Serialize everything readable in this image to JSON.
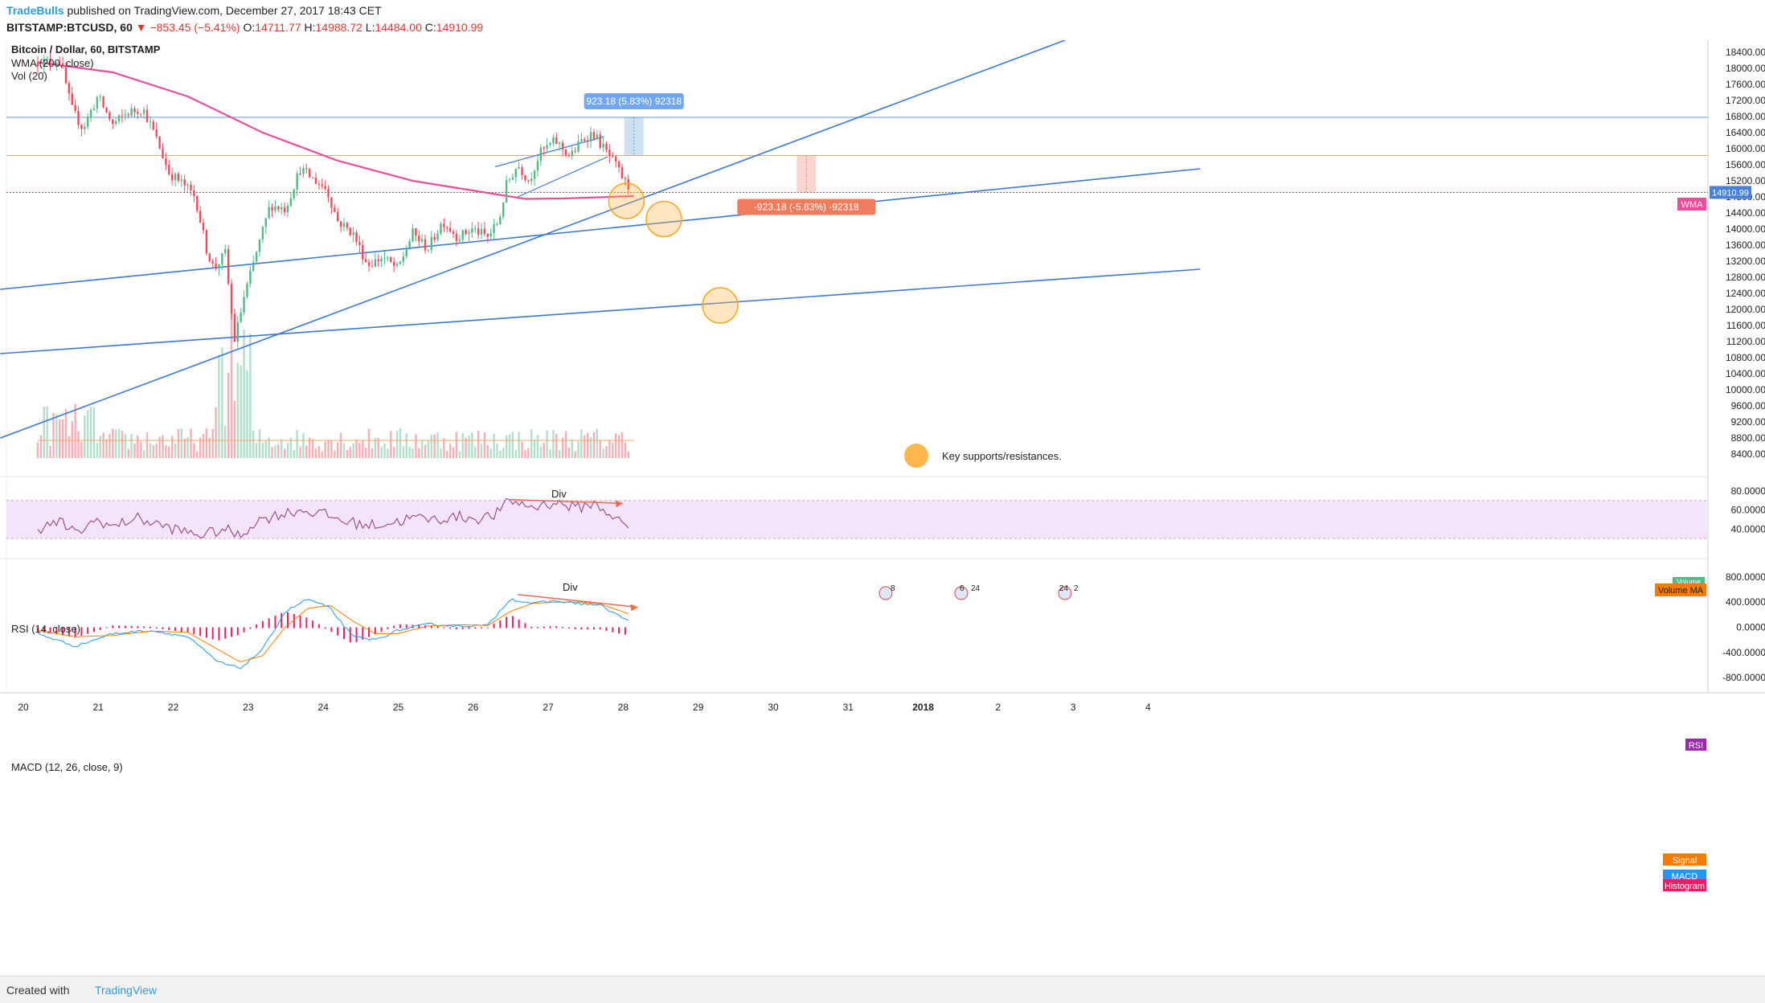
{
  "header": {
    "author": "TradeBulls",
    "published": "published on TradingView.com, December 27, 2017 18:43 CET",
    "symbol": "BITSTAMP:BTCUSD, 60",
    "change": "▼ −853.45 (−5.41%)",
    "open_label": "O:",
    "open": "14711.77",
    "high_label": "H:",
    "high": "14988.72",
    "low_label": "L:",
    "low": "14484.00",
    "close_label": "C:",
    "close": "14910.99"
  },
  "footer": {
    "created_with": "Created with",
    "brand": "TradingView"
  },
  "chart_data": {
    "type": "candlestick",
    "title": "Bitcoin / Dollar, 60, BITSTAMP",
    "indicators": [
      "WMA (200, close)",
      "Vol (20)"
    ],
    "x_ticks": [
      "20",
      "21",
      "22",
      "23",
      "24",
      "25",
      "26",
      "27",
      "28",
      "29",
      "30",
      "31",
      "2018",
      "2",
      "3",
      "4"
    ],
    "y_ticks": [
      "18400.00",
      "18000.00",
      "17600.00",
      "17200.00",
      "16800.00",
      "16400.00",
      "16000.00",
      "15600.00",
      "15200.00",
      "14800.00",
      "14400.00",
      "14000.00",
      "13600.00",
      "13200.00",
      "12800.00",
      "12400.00",
      "12000.00",
      "11600.00",
      "11200.00",
      "10800.00",
      "10400.00",
      "10000.00",
      "9600.00",
      "9200.00",
      "8800.00",
      "8400.00"
    ],
    "ylim": [
      8200,
      18700
    ],
    "price_points": [
      {
        "t": 0,
        "p": 18150
      },
      {
        "t": 0.3,
        "p": 18200
      },
      {
        "t": 0.45,
        "p": 17000
      },
      {
        "t": 0.6,
        "p": 16500
      },
      {
        "t": 0.8,
        "p": 17300
      },
      {
        "t": 1.0,
        "p": 16600
      },
      {
        "t": 1.2,
        "p": 16900
      },
      {
        "t": 1.4,
        "p": 17000
      },
      {
        "t": 1.55,
        "p": 16400
      },
      {
        "t": 1.75,
        "p": 15400
      },
      {
        "t": 1.95,
        "p": 15100
      },
      {
        "t": 2.1,
        "p": 14800
      },
      {
        "t": 2.25,
        "p": 13500
      },
      {
        "t": 2.35,
        "p": 13000
      },
      {
        "t": 2.5,
        "p": 13400
      },
      {
        "t": 2.62,
        "p": 11200
      },
      {
        "t": 2.75,
        "p": 12300
      },
      {
        "t": 2.9,
        "p": 13300
      },
      {
        "t": 3.1,
        "p": 14600
      },
      {
        "t": 3.3,
        "p": 14500
      },
      {
        "t": 3.5,
        "p": 15500
      },
      {
        "t": 3.7,
        "p": 15200
      },
      {
        "t": 3.85,
        "p": 15000
      },
      {
        "t": 4.0,
        "p": 14200
      },
      {
        "t": 4.2,
        "p": 13900
      },
      {
        "t": 4.4,
        "p": 13100
      },
      {
        "t": 4.6,
        "p": 13300
      },
      {
        "t": 4.8,
        "p": 13000
      },
      {
        "t": 5.0,
        "p": 13900
      },
      {
        "t": 5.2,
        "p": 13500
      },
      {
        "t": 5.4,
        "p": 14200
      },
      {
        "t": 5.6,
        "p": 13800
      },
      {
        "t": 5.8,
        "p": 14000
      },
      {
        "t": 6.0,
        "p": 13800
      },
      {
        "t": 6.15,
        "p": 14200
      },
      {
        "t": 6.25,
        "p": 15100
      },
      {
        "t": 6.4,
        "p": 15600
      },
      {
        "t": 6.55,
        "p": 15200
      },
      {
        "t": 6.7,
        "p": 15900
      },
      {
        "t": 6.9,
        "p": 16200
      },
      {
        "t": 7.1,
        "p": 15800
      },
      {
        "t": 7.25,
        "p": 16200
      },
      {
        "t": 7.4,
        "p": 16400
      },
      {
        "t": 7.55,
        "p": 16000
      },
      {
        "t": 7.7,
        "p": 15600
      },
      {
        "t": 7.85,
        "p": 15100
      },
      {
        "t": 7.95,
        "p": 14900
      }
    ],
    "wma_points": [
      {
        "t": 0,
        "p": 18150
      },
      {
        "t": 1,
        "p": 17900
      },
      {
        "t": 2,
        "p": 17300
      },
      {
        "t": 3,
        "p": 16400
      },
      {
        "t": 4,
        "p": 15700
      },
      {
        "t": 5,
        "p": 15200
      },
      {
        "t": 6,
        "p": 14900
      },
      {
        "t": 6.5,
        "p": 14750
      },
      {
        "t": 7,
        "p": 14760
      },
      {
        "t": 7.95,
        "p": 14820
      }
    ],
    "trendlines": [
      {
        "from": {
          "t": -0.5,
          "p": 8800
        },
        "to": {
          "t": 13.7,
          "p": 18700
        }
      },
      {
        "from": {
          "t": -0.5,
          "p": 12500
        },
        "to": {
          "t": 15.5,
          "p": 15500
        }
      },
      {
        "from": {
          "t": -0.5,
          "p": 10900
        },
        "to": {
          "t": 15.5,
          "p": 13000
        }
      }
    ],
    "channel_lines": [
      {
        "from": {
          "t": 6.1,
          "p": 15550
        },
        "to": {
          "t": 7.55,
          "p": 16300
        }
      },
      {
        "from": {
          "t": 6.4,
          "p": 14800
        },
        "to": {
          "t": 7.6,
          "p": 15800
        }
      }
    ],
    "horizontal_levels": [
      {
        "p": 16780,
        "color": "#5b9bd5"
      },
      {
        "p": 15830,
        "color": "#f5a76a"
      },
      {
        "p": 14911,
        "color": "#9c5050",
        "dotted": true
      }
    ],
    "measure_up": {
      "label": "923.18 (5.83%) 92318",
      "t": 7.95,
      "from": 15830,
      "to": 16780
    },
    "measure_down": {
      "label": "-923.18 (-5.83%) -92318",
      "t": 10.25,
      "from": 15830,
      "to": 14911
    },
    "key_circles": [
      {
        "t": 7.85,
        "p": 14700
      },
      {
        "t": 8.35,
        "p": 14250
      },
      {
        "t": 9.1,
        "p": 12100
      }
    ],
    "legend_note": "Key supports/resistances.",
    "last_price_label": "14910.99",
    "wma_tag": "WMA",
    "volume_tags": [
      "Volume",
      "Volume MA"
    ],
    "event_markers": [
      "8",
      "6",
      "24",
      "24",
      "2"
    ],
    "rsi": {
      "title": "RSI (14, close)",
      "ylim": [
        20,
        85
      ],
      "y_ticks": [
        "80.0000",
        "60.0000",
        "40.0000"
      ],
      "band": [
        30,
        70
      ],
      "points": [
        {
          "t": 0,
          "p": 40
        },
        {
          "t": 0.3,
          "p": 48
        },
        {
          "t": 0.5,
          "p": 35
        },
        {
          "t": 0.8,
          "p": 50
        },
        {
          "t": 1.0,
          "p": 42
        },
        {
          "t": 1.3,
          "p": 52
        },
        {
          "t": 1.6,
          "p": 45
        },
        {
          "t": 1.9,
          "p": 38
        },
        {
          "t": 2.2,
          "p": 34
        },
        {
          "t": 2.5,
          "p": 40
        },
        {
          "t": 2.7,
          "p": 32
        },
        {
          "t": 2.9,
          "p": 48
        },
        {
          "t": 3.2,
          "p": 55
        },
        {
          "t": 3.5,
          "p": 60
        },
        {
          "t": 3.8,
          "p": 56
        },
        {
          "t": 4.1,
          "p": 48
        },
        {
          "t": 4.4,
          "p": 44
        },
        {
          "t": 4.7,
          "p": 46
        },
        {
          "t": 5.0,
          "p": 52
        },
        {
          "t": 5.3,
          "p": 50
        },
        {
          "t": 5.6,
          "p": 53
        },
        {
          "t": 5.9,
          "p": 51
        },
        {
          "t": 6.1,
          "p": 55
        },
        {
          "t": 6.3,
          "p": 70
        },
        {
          "t": 6.6,
          "p": 63
        },
        {
          "t": 6.9,
          "p": 68
        },
        {
          "t": 7.2,
          "p": 62
        },
        {
          "t": 7.4,
          "p": 67
        },
        {
          "t": 7.6,
          "p": 58
        },
        {
          "t": 7.8,
          "p": 45
        },
        {
          "t": 7.95,
          "p": 40
        }
      ],
      "div_label": "Div",
      "tag": "RSI"
    },
    "macd": {
      "title": "MACD (12, 26, close, 9)",
      "ylim": [
        -950,
        900
      ],
      "y_ticks": [
        "800.0000",
        "400.0000",
        "0.0000",
        "-400.0000",
        "-800.0000"
      ],
      "macd_points": [
        {
          "t": 0,
          "p": -100
        },
        {
          "t": 0.5,
          "p": -300
        },
        {
          "t": 1.0,
          "p": -100
        },
        {
          "t": 1.5,
          "p": -50
        },
        {
          "t": 2.0,
          "p": -150
        },
        {
          "t": 2.4,
          "p": -550
        },
        {
          "t": 2.7,
          "p": -650
        },
        {
          "t": 3.0,
          "p": -350
        },
        {
          "t": 3.3,
          "p": 250
        },
        {
          "t": 3.6,
          "p": 450
        },
        {
          "t": 3.9,
          "p": 300
        },
        {
          "t": 4.2,
          "p": -150
        },
        {
          "t": 4.5,
          "p": -200
        },
        {
          "t": 4.8,
          "p": -50
        },
        {
          "t": 5.2,
          "p": 50
        },
        {
          "t": 5.6,
          "p": 20
        },
        {
          "t": 6.0,
          "p": 30
        },
        {
          "t": 6.3,
          "p": 450
        },
        {
          "t": 6.6,
          "p": 380
        },
        {
          "t": 6.9,
          "p": 420
        },
        {
          "t": 7.2,
          "p": 380
        },
        {
          "t": 7.5,
          "p": 350
        },
        {
          "t": 7.8,
          "p": 150
        },
        {
          "t": 7.95,
          "p": 50
        }
      ],
      "signal_points": [
        {
          "t": 0,
          "p": -50
        },
        {
          "t": 0.5,
          "p": -150
        },
        {
          "t": 1.0,
          "p": -130
        },
        {
          "t": 1.5,
          "p": -60
        },
        {
          "t": 2.0,
          "p": -80
        },
        {
          "t": 2.4,
          "p": -350
        },
        {
          "t": 2.7,
          "p": -550
        },
        {
          "t": 3.0,
          "p": -450
        },
        {
          "t": 3.3,
          "p": 0
        },
        {
          "t": 3.6,
          "p": 300
        },
        {
          "t": 3.9,
          "p": 350
        },
        {
          "t": 4.2,
          "p": 100
        },
        {
          "t": 4.5,
          "p": -100
        },
        {
          "t": 4.8,
          "p": -100
        },
        {
          "t": 5.2,
          "p": 20
        },
        {
          "t": 5.6,
          "p": 40
        },
        {
          "t": 6.0,
          "p": 30
        },
        {
          "t": 6.3,
          "p": 250
        },
        {
          "t": 6.6,
          "p": 380
        },
        {
          "t": 6.9,
          "p": 400
        },
        {
          "t": 7.2,
          "p": 400
        },
        {
          "t": 7.5,
          "p": 370
        },
        {
          "t": 7.8,
          "p": 250
        },
        {
          "t": 7.95,
          "p": 170
        }
      ],
      "div_label": "Div",
      "tags": [
        "Signal",
        "MACD",
        "Histogram"
      ]
    },
    "colors": {
      "up": "#53b987",
      "down": "#eb4d5c",
      "wma": "#e84e9a",
      "trend": "#3b78d8",
      "rsi_line": "#8b3a7a",
      "rsi_band": "#f4e4fa",
      "macd": "#2196f3",
      "signal": "#f57c00",
      "histogram": "#e91e63"
    }
  }
}
